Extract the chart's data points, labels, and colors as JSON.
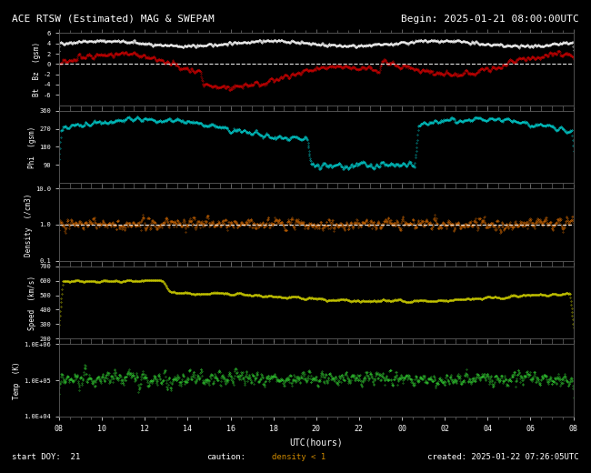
{
  "title_left": "ACE RTSW (Estimated) MAG & SWEPAM",
  "title_right": "Begin: 2025-01-21 08:00:00UTC",
  "footer_left": "start DOY:  21",
  "footer_caution": "caution:",
  "footer_density": "density < 1",
  "footer_right": "created: 2025-01-22 07:26:05UTC",
  "xlabel": "UTC(hours)",
  "xtick_labels": [
    "08",
    "10",
    "12",
    "14",
    "16",
    "18",
    "20",
    "22",
    "00",
    "02",
    "04",
    "06",
    "08"
  ],
  "xtick_positions": [
    0,
    2,
    4,
    6,
    8,
    10,
    12,
    14,
    16,
    18,
    20,
    22,
    24
  ],
  "xmin": 0,
  "xmax": 24,
  "bg_color": "#000000",
  "fig_bg_color": "#000000",
  "text_color": "#ffffff",
  "panels": [
    {
      "ylabel": "Bt  Bz  (gsm)",
      "ylim": [
        -8,
        6
      ],
      "yticks": [
        -6,
        -4,
        -2,
        0,
        2,
        4,
        6
      ],
      "ytick_labels": [
        "-6",
        "-4",
        "-2",
        "0",
        "2",
        "4",
        "6"
      ],
      "dashed_zero": true,
      "log": false,
      "dashed_one": false,
      "colors": [
        "#ffffff",
        "#cc0000"
      ]
    },
    {
      "ylabel": "Phi  (gsm)",
      "ylim": [
        0,
        360
      ],
      "yticks": [
        90,
        180,
        270,
        360
      ],
      "ytick_labels": [
        "90",
        "180",
        "270",
        "360"
      ],
      "dashed_zero": false,
      "log": false,
      "dashed_one": false,
      "colors": [
        "#00cccc"
      ]
    },
    {
      "ylabel": "Density  (/cm3)",
      "ylim": [
        0.1,
        10.0
      ],
      "yticks": [
        0.1,
        1.0,
        10.0
      ],
      "ytick_labels": [
        "0.1",
        "1.0",
        "10.0"
      ],
      "dashed_zero": false,
      "log": true,
      "dashed_one": true,
      "colors": [
        "#cc6600"
      ]
    },
    {
      "ylabel": "Speed  (km/s)",
      "ylim": [
        200,
        700
      ],
      "yticks": [
        200,
        300,
        400,
        500,
        600,
        700
      ],
      "ytick_labels": [
        "200",
        "300",
        "400",
        "500",
        "600",
        "700"
      ],
      "dashed_zero": false,
      "log": false,
      "dashed_one": false,
      "colors": [
        "#cccc00"
      ]
    },
    {
      "ylabel": "Temp  (K)",
      "ylim": [
        10000,
        1000000
      ],
      "yticks": [
        10000,
        100000,
        1000000
      ],
      "ytick_labels": [
        "1.0E+04",
        "1.0E+05",
        "1.0E+06"
      ],
      "dashed_zero": false,
      "log": true,
      "dashed_one": false,
      "colors": [
        "#33cc33"
      ]
    }
  ]
}
